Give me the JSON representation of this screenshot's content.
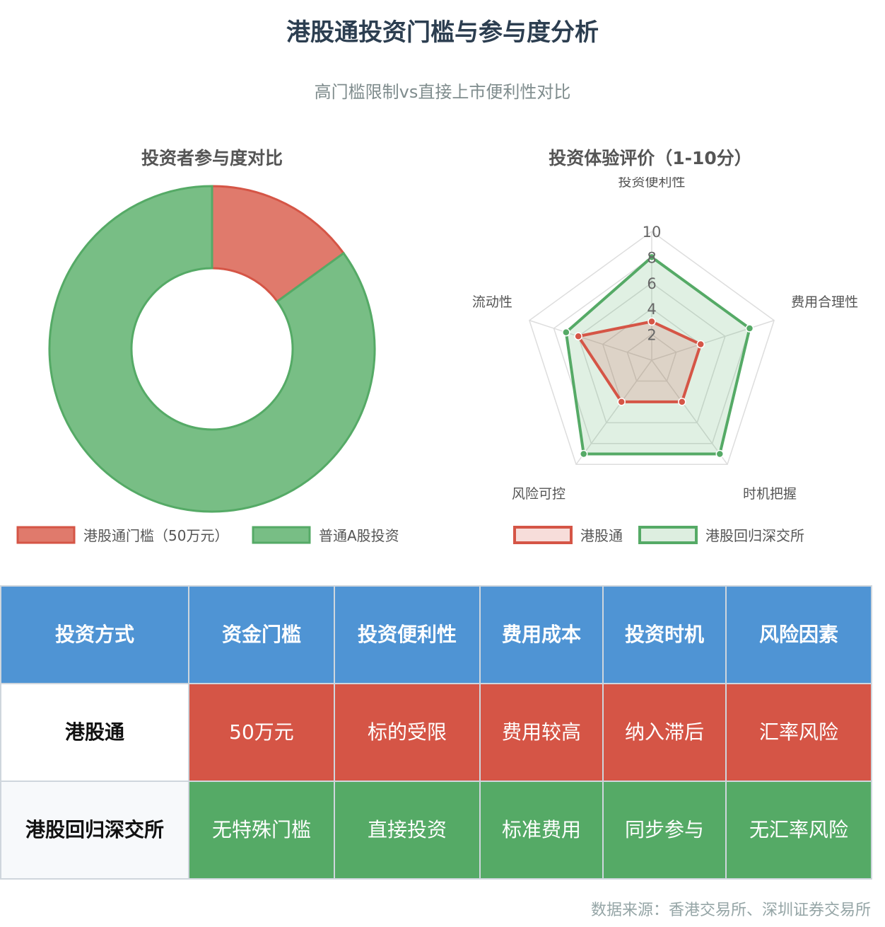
{
  "title": "港股通投资门槛与参与度分析",
  "subtitle": "高门槛限制vs直接上市便利性对比",
  "donut": {
    "title": "投资者参与度对比",
    "legend_labels": [
      "港股通门槛（50万元）",
      "普通A股投资"
    ],
    "colors": [
      "#e07a6c",
      "#78be85"
    ],
    "border_colors": [
      "#d55546",
      "#55aa66"
    ]
  },
  "radar": {
    "title": "投资体验评价（1-10分）",
    "axes": [
      "投资便利性",
      "费用合理性",
      "时机把握",
      "风险可控",
      "流动性"
    ],
    "tick_labels": [
      "2",
      "4",
      "6",
      "8",
      "10"
    ],
    "legend_labels": [
      "港股通",
      "港股回归深交所"
    ],
    "colors": {
      "hk_line": "#d55546",
      "hk_fill": "rgba(213,85,70,0.18)",
      "sz_line": "#55aa66",
      "sz_fill": "rgba(85,170,102,0.18)"
    }
  },
  "chart_data": [
    {
      "type": "pie",
      "title": "投资者参与度对比",
      "labels": [
        "港股通门槛（50万元）",
        "普通A股投资"
      ],
      "values": [
        15,
        85
      ]
    },
    {
      "type": "radar",
      "title": "投资体验评价（1-10分）",
      "axes": [
        "投资便利性",
        "费用合理性",
        "时机把握",
        "风险可控",
        "流动性"
      ],
      "range": [
        0,
        10
      ],
      "series": [
        {
          "name": "港股通",
          "values": [
            3,
            4,
            4,
            4,
            6
          ]
        },
        {
          "name": "港股回归深交所",
          "values": [
            8,
            8,
            9,
            9,
            7
          ]
        }
      ]
    }
  ],
  "table": {
    "headers": [
      "投资方式",
      "资金门槛",
      "投资便利性",
      "费用成本",
      "投资时机",
      "风险因素"
    ],
    "rows": [
      {
        "name": "港股通",
        "cells": [
          "50万元",
          "标的受限",
          "费用较高",
          "纳入滞后",
          "汇率风险"
        ]
      },
      {
        "name": "港股回归深交所",
        "cells": [
          "无特殊门槛",
          "直接投资",
          "标准费用",
          "同步参与",
          "无汇率风险"
        ]
      }
    ]
  },
  "source": "数据来源：香港交易所、深圳证券交易所"
}
